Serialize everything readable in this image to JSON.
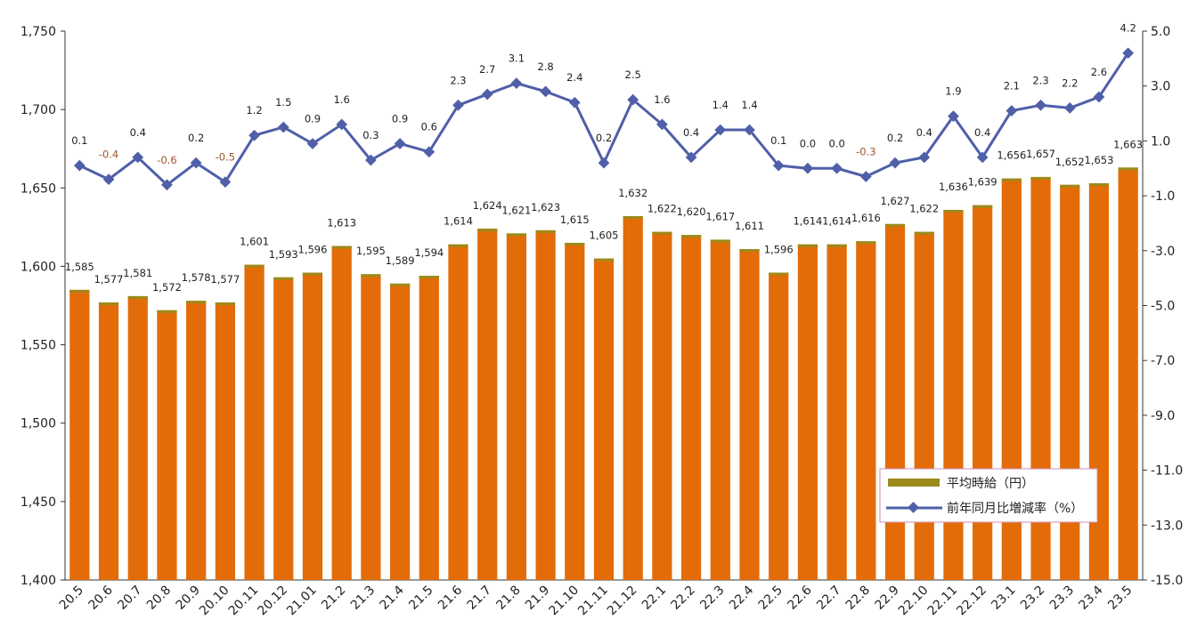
{
  "chart_data": {
    "type": "bar+line",
    "categories": [
      "20.5",
      "20.6",
      "20.7",
      "20.8",
      "20.9",
      "20.10",
      "20.11",
      "20.12",
      "21.01",
      "21.2",
      "21.3",
      "21.4",
      "21.5",
      "21.6",
      "21.7",
      "21.8",
      "21.9",
      "21.10",
      "21.11",
      "21.12",
      "22.1",
      "22.2",
      "22.3",
      "22.4",
      "22.5",
      "22.6",
      "22.7",
      "22.8",
      "22.9",
      "22.10",
      "22.11",
      "22.12",
      "23.1",
      "23.2",
      "23.3",
      "23.4",
      "23.5"
    ],
    "series": [
      {
        "name": "平均時給（円）",
        "type": "bar",
        "axis": "left",
        "values": [
          1585,
          1577,
          1581,
          1572,
          1578,
          1577,
          1601,
          1593,
          1596,
          1613,
          1595,
          1589,
          1594,
          1614,
          1624,
          1621,
          1623,
          1615,
          1605,
          1632,
          1622,
          1620,
          1617,
          1611,
          1596,
          1614,
          1614,
          1616,
          1627,
          1622,
          1636,
          1639,
          1656,
          1657,
          1652,
          1653,
          1663
        ],
        "labels": [
          "1,585",
          "1,577",
          "1,581",
          "1,572",
          "1,578",
          "1,577",
          "1,601",
          "1,593",
          "1,596",
          "1,613",
          "1,595",
          "1,589",
          "1,594",
          "1,614",
          "1,624",
          "1,621",
          "1,623",
          "1,615",
          "1,605",
          "1,632",
          "1,622",
          "1,620",
          "1,617",
          "1,611",
          "1,596",
          "1,614",
          "1,614",
          "1,616",
          "1,627",
          "1,622",
          "1,636",
          "1,639",
          "1,656",
          "1,657",
          "1,652",
          "1,653",
          "1,663"
        ],
        "color": "#E36C09",
        "edge_color": "#9C8A1A"
      },
      {
        "name": "前年同月比増減率（%）",
        "type": "line",
        "axis": "right",
        "values": [
          0.1,
          -0.4,
          0.4,
          -0.6,
          0.2,
          -0.5,
          1.2,
          1.5,
          0.9,
          1.6,
          0.3,
          0.9,
          0.6,
          2.3,
          2.7,
          3.1,
          2.8,
          2.4,
          0.2,
          2.5,
          1.6,
          0.4,
          1.4,
          1.4,
          0.1,
          0.0,
          0.0,
          -0.3,
          0.2,
          0.4,
          1.9,
          0.4,
          2.1,
          2.3,
          2.2,
          2.6,
          4.2
        ],
        "labels": [
          "0.1",
          "-0.4",
          "0.4",
          "-0.6",
          "0.2",
          "-0.5",
          "1.2",
          "1.5",
          "0.9",
          "1.6",
          "0.3",
          "0.9",
          "0.6",
          "2.3",
          "2.7",
          "3.1",
          "2.8",
          "2.4",
          "0.2",
          "2.5",
          "1.6",
          "0.4",
          "1.4",
          "1.4",
          "0.1",
          "0.0",
          "0.0",
          "-0.3",
          "0.2",
          "0.4",
          "1.9",
          "0.4",
          "2.1",
          "2.3",
          "2.2",
          "2.6",
          "4.2"
        ],
        "color": "#4F5FA8",
        "negative_label_color": "#A0522D"
      }
    ],
    "left_axis": {
      "range": [
        1400,
        1750
      ],
      "ticks": [
        "1,400",
        "1,450",
        "1,500",
        "1,550",
        "1,600",
        "1,650",
        "1,700",
        "1,750"
      ]
    },
    "right_axis": {
      "range": [
        -15.0,
        5.0
      ],
      "ticks": [
        "-15.0",
        "-13.0",
        "-11.0",
        "-9.0",
        "-7.0",
        "-5.0",
        "-3.0",
        "-1.0",
        "1.0",
        "3.0",
        "5.0"
      ]
    },
    "legend_placement": "bottom-right",
    "grid": false
  }
}
